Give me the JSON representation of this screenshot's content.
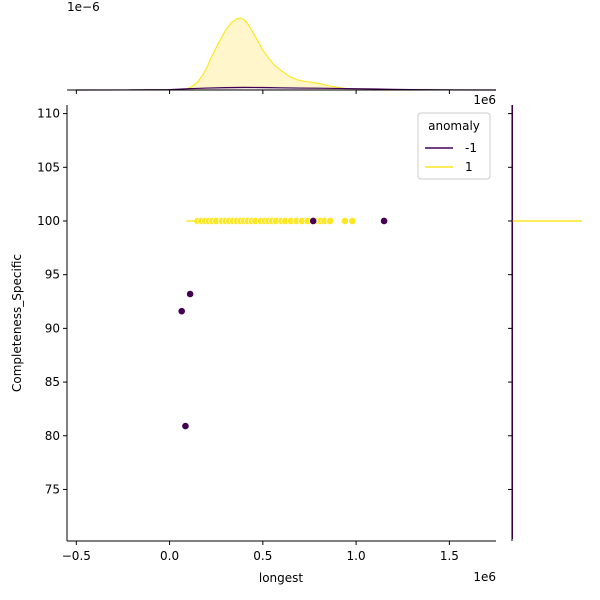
{
  "chart_data": {
    "type": "scatter",
    "xlabel": "longest",
    "ylabel": "Completeness_Specific",
    "x_offset_label": "1e6",
    "y_offset_label": "1e6",
    "marginal_offset_label": "1e−6",
    "xlim": [
      -550000,
      1750000
    ],
    "ylim": [
      70.2,
      110.8
    ],
    "xticks": [
      -0.5,
      0.0,
      0.5,
      1.0,
      1.5
    ],
    "yticks": [
      75,
      80,
      85,
      90,
      95,
      100,
      105,
      110
    ],
    "legend": {
      "title": "anomaly",
      "placement": "upper right",
      "entries": [
        {
          "label": "-1",
          "color": "#440154"
        },
        {
          "label": "1",
          "color": "#fde725"
        }
      ]
    },
    "series": [
      {
        "name": "-1",
        "color": "#440154",
        "points": [
          [
            65000,
            91.6
          ],
          [
            110000,
            93.2
          ],
          [
            85000,
            80.9
          ],
          [
            770000,
            100
          ],
          [
            1150000,
            100
          ]
        ]
      },
      {
        "name": "1",
        "color": "#fde725",
        "points": [
          [
            150000,
            100
          ],
          [
            170000,
            100
          ],
          [
            190000,
            100
          ],
          [
            210000,
            100
          ],
          [
            230000,
            100
          ],
          [
            250000,
            100
          ],
          [
            280000,
            100
          ],
          [
            300000,
            100
          ],
          [
            320000,
            100
          ],
          [
            340000,
            100
          ],
          [
            360000,
            100
          ],
          [
            380000,
            100
          ],
          [
            400000,
            100
          ],
          [
            420000,
            100
          ],
          [
            440000,
            100
          ],
          [
            460000,
            100
          ],
          [
            490000,
            100
          ],
          [
            510000,
            100
          ],
          [
            530000,
            100
          ],
          [
            550000,
            100
          ],
          [
            570000,
            100
          ],
          [
            600000,
            100
          ],
          [
            620000,
            100
          ],
          [
            650000,
            100
          ],
          [
            680000,
            100
          ],
          [
            710000,
            100
          ],
          [
            740000,
            100
          ],
          [
            790000,
            100
          ],
          [
            810000,
            100
          ],
          [
            830000,
            100
          ],
          [
            860000,
            100
          ],
          [
            940000,
            100
          ],
          [
            980000,
            100
          ]
        ]
      }
    ],
    "marginal_x": {
      "series": [
        {
          "name": "1",
          "color": "#fde725",
          "fill": "#fff6c5",
          "x": [
            0.05,
            0.08,
            0.1,
            0.12,
            0.15,
            0.18,
            0.2,
            0.22,
            0.25,
            0.28,
            0.3,
            0.33,
            0.36,
            0.38,
            0.4,
            0.42,
            0.45,
            0.48,
            0.5,
            0.53,
            0.56,
            0.6,
            0.64,
            0.68,
            0.72,
            0.76,
            0.8,
            0.85,
            0.9,
            0.95,
            1.0,
            1.05,
            1.1,
            1.2
          ],
          "density": [
            0.0,
            0.01,
            0.04,
            0.08,
            0.18,
            0.36,
            0.52,
            0.72,
            0.98,
            1.22,
            1.38,
            1.55,
            1.64,
            1.66,
            1.62,
            1.52,
            1.3,
            1.08,
            0.92,
            0.74,
            0.58,
            0.44,
            0.32,
            0.24,
            0.2,
            0.18,
            0.15,
            0.1,
            0.06,
            0.03,
            0.015,
            0.008,
            0.004,
            0.0
          ]
        },
        {
          "name": "-1",
          "color": "#440154",
          "fill": "#e6dde8",
          "x": [
            -0.5,
            -0.2,
            0.0,
            0.1,
            0.2,
            0.3,
            0.4,
            0.5,
            0.6,
            0.7,
            0.8,
            0.9,
            1.0,
            1.1,
            1.2,
            1.3,
            1.5,
            1.75
          ],
          "density": [
            0.0,
            0.002,
            0.01,
            0.03,
            0.045,
            0.055,
            0.06,
            0.058,
            0.05,
            0.045,
            0.042,
            0.036,
            0.03,
            0.025,
            0.015,
            0.008,
            0.002,
            0.0
          ]
        }
      ]
    },
    "marginal_y": {
      "series": [
        {
          "name": "1",
          "color": "#fde725",
          "value": 100
        },
        {
          "name": "-1",
          "color": "#440154"
        }
      ]
    }
  }
}
